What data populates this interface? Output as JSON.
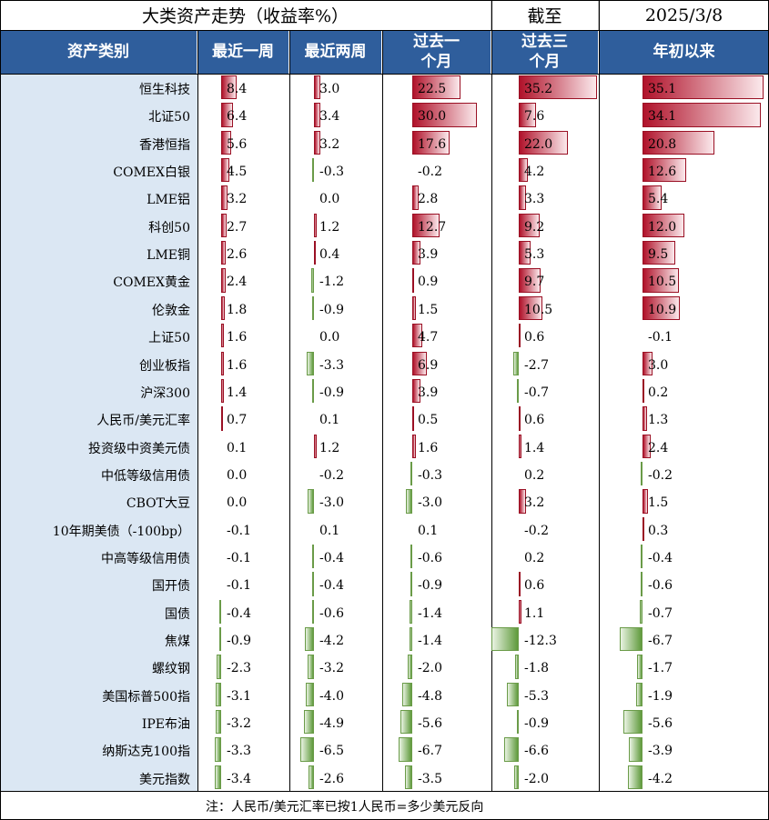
{
  "header": {
    "title": "大类资产走势（收益率%）",
    "as_of_label": "截至",
    "date": "2025/3/8"
  },
  "columns": [
    "资产类别",
    "最近一周",
    "最近两周",
    "过去一个月",
    "过去三个月",
    "年初以来"
  ],
  "footnote": "注：人民币/美元汇率已按1人民币=多少美元反向",
  "colors": {
    "header_bg": "#2f5e9c",
    "label_bg": "#dbe7f3",
    "positive": "#b0122a",
    "negative": "#5f9a3c"
  },
  "chart_data": {
    "type": "table",
    "categories": [
      "恒生科技",
      "北证50",
      "香港恒指",
      "COMEX白银",
      "LME铝",
      "科创50",
      "LME铜",
      "COMEX黄金",
      "伦敦金",
      "上证50",
      "创业板指",
      "沪深300",
      "人民币/美元汇率",
      "投资级中资美元债",
      "中低等级信用债",
      "CBOT大豆",
      "10年期美债（-100bp）",
      "中高等级信用债",
      "国开债",
      "国债",
      "焦煤",
      "螺纹钢",
      "美国标普500指",
      "IPE布油",
      "纳斯达克100指",
      "美元指数"
    ],
    "series": [
      {
        "name": "最近一周",
        "values": [
          "8.4",
          "6.4",
          "5.6",
          "4.5",
          "3.2",
          "2.7",
          "2.6",
          "2.4",
          "1.8",
          "1.6",
          "1.6",
          "1.4",
          "0.7",
          "0.1",
          "0.0",
          "0.0",
          "-0.1",
          "-0.1",
          "-0.1",
          "-0.4",
          "-0.9",
          "-2.3",
          "-3.1",
          "-3.2",
          "-3.3",
          "-3.4"
        ]
      },
      {
        "name": "最近两周",
        "values": [
          "3.0",
          "3.4",
          "3.2",
          "-0.3",
          "0.0",
          "1.2",
          "0.4",
          "-1.2",
          "-0.9",
          "0.0",
          "-3.3",
          "-0.9",
          "0.1",
          "1.2",
          "-0.2",
          "-3.0",
          "0.1",
          "-0.4",
          "-0.4",
          "-0.6",
          "-4.2",
          "-3.2",
          "-4.0",
          "-4.9",
          "-6.5",
          "-2.6"
        ]
      },
      {
        "name": "过去一个月",
        "values": [
          "22.5",
          "30.0",
          "17.6",
          "-0.2",
          "2.8",
          "12.7",
          "3.9",
          "0.9",
          "1.5",
          "4.7",
          "6.9",
          "3.9",
          "0.5",
          "1.6",
          "-0.3",
          "-3.0",
          "0.1",
          "-0.6",
          "-0.9",
          "-1.4",
          "-1.4",
          "-2.0",
          "-4.8",
          "-5.6",
          "-6.7",
          "-3.5"
        ]
      },
      {
        "name": "过去三个月",
        "values": [
          "35.2",
          "7.6",
          "22.0",
          "4.2",
          "3.3",
          "9.2",
          "5.3",
          "9.7",
          "10.5",
          "0.6",
          "-2.7",
          "-0.7",
          "0.6",
          "1.4",
          "0.2",
          "3.2",
          "-0.2",
          "0.2",
          "0.6",
          "1.1",
          "-12.3",
          "-1.8",
          "-5.3",
          "-0.9",
          "-6.6",
          "-2.0"
        ]
      },
      {
        "name": "年初以来",
        "values": [
          "35.1",
          "34.1",
          "20.8",
          "12.6",
          "5.4",
          "12.0",
          "9.5",
          "10.5",
          "10.9",
          "-0.1",
          "3.0",
          "0.2",
          "1.3",
          "2.4",
          "-0.2",
          "1.5",
          "0.3",
          "-0.4",
          "-0.6",
          "-0.7",
          "-6.7",
          "-1.7",
          "-1.9",
          "-5.6",
          "-3.9",
          "-4.2"
        ]
      }
    ]
  }
}
